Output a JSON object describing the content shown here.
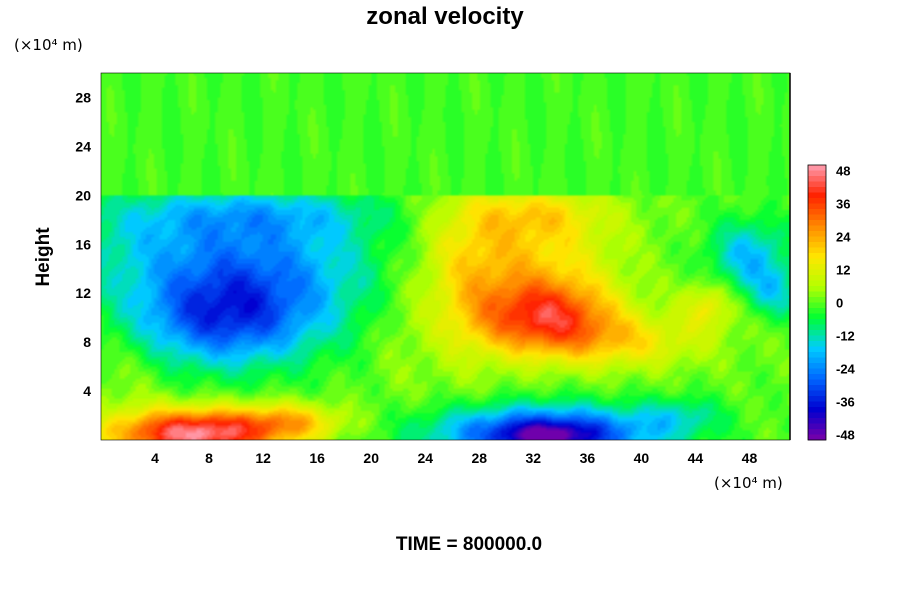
{
  "chart_data": {
    "type": "heatmap",
    "title": "zonal velocity",
    "ylabel": "Height",
    "xlabel": "",
    "x_units": "(×10⁴ m)",
    "y_units": "(×10⁴ m)",
    "footer": "TIME = 800000.0",
    "xlim": [
      0,
      51
    ],
    "ylim": [
      0,
      30
    ],
    "x_ticks": [
      "4",
      "8",
      "12",
      "16",
      "20",
      "24",
      "28",
      "32",
      "36",
      "40",
      "44",
      "48"
    ],
    "y_ticks": [
      "4",
      "8",
      "12",
      "16",
      "20",
      "24",
      "28"
    ],
    "colorbar": {
      "min": -50,
      "max": 50,
      "ticks": [
        "48",
        "36",
        "24",
        "12",
        "0",
        "-12",
        "-24",
        "-36",
        "-48"
      ]
    },
    "field_features": [
      {
        "feature": "negative core",
        "x": 8.5,
        "y": 9.8,
        "value": -44
      },
      {
        "feature": "positive core",
        "x": 33,
        "y": 10,
        "value": 44
      },
      {
        "feature": "positive surface",
        "x": 7,
        "y": 0.5,
        "value": 48
      },
      {
        "feature": "negative surface",
        "x": 33,
        "y": 0.5,
        "value": -48
      },
      {
        "feature": "upper layer",
        "y_range": [
          20,
          30
        ],
        "value": 0
      }
    ]
  },
  "colors": {
    "scale": [
      "#7a00a8",
      "#0000d0",
      "#0066ff",
      "#00ccff",
      "#00ff33",
      "#b4ff00",
      "#ffe600",
      "#ff8800",
      "#ff2200",
      "#ffa0b4"
    ]
  }
}
